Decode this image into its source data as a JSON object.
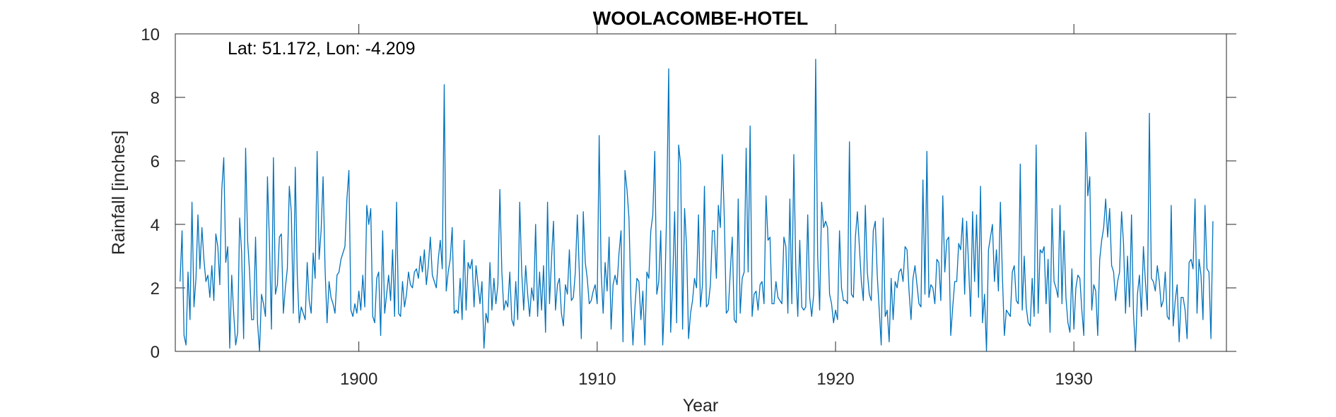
{
  "chart_data": {
    "type": "line",
    "title": "WOOLACOMBE-HOTEL",
    "annotation": "Lat: 51.172, Lon: -4.209",
    "xlabel": "Year",
    "ylabel": "Rainfall [inches]",
    "xlim": [
      1892.3,
      1936.4
    ],
    "ylim": [
      0,
      10
    ],
    "xticks": [
      1900,
      1910,
      1920,
      1930
    ],
    "yticks": [
      0,
      2,
      4,
      6,
      8,
      10
    ],
    "grid": false,
    "line_color": "#0072BD",
    "series": [
      {
        "x_start": 1892.5,
        "x_step": 0.0833333,
        "values": [
          2.2,
          3.8,
          0.5,
          0.2,
          2.5,
          1.0,
          4.7,
          1.4,
          2.3,
          4.3,
          2.6,
          3.9,
          2.9,
          2.2,
          2.4,
          1.7,
          2.7,
          1.6,
          3.7,
          3.3,
          2.1,
          5.1,
          6.1,
          2.8,
          3.3,
          0.1,
          2.4,
          1.2,
          0.2,
          0.6,
          4.2,
          3.1,
          0.4,
          6.4,
          3.5,
          2.5,
          1.0,
          1.0,
          3.6,
          0.9,
          0.0,
          1.8,
          1.5,
          1.1,
          5.5,
          3.4,
          0.7,
          6.1,
          1.8,
          2.1,
          3.6,
          3.7,
          1.2,
          2.0,
          2.6,
          5.2,
          4.4,
          1.2,
          5.8,
          2.4,
          0.9,
          1.4,
          1.2,
          1.0,
          2.8,
          1.6,
          1.2,
          3.1,
          2.3,
          6.3,
          2.9,
          3.8,
          5.5,
          2.6,
          0.9,
          2.2,
          1.7,
          1.5,
          1.2,
          2.4,
          2.5,
          2.9,
          3.1,
          3.3,
          4.8,
          5.7,
          1.3,
          1.1,
          1.5,
          1.2,
          1.9,
          1.3,
          2.4,
          1.4,
          4.6,
          4.0,
          4.5,
          1.1,
          0.9,
          2.3,
          2.5,
          0.5,
          3.8,
          1.2,
          1.8,
          2.4,
          1.6,
          3.2,
          1.1,
          4.7,
          1.2,
          1.1,
          2.2,
          1.4,
          1.8,
          2.5,
          2.1,
          2.0,
          2.5,
          2.6,
          2.3,
          3.0,
          2.5,
          3.2,
          2.1,
          2.7,
          3.6,
          2.4,
          2.2,
          2.0,
          2.9,
          3.5,
          2.6,
          8.4,
          1.9,
          2.5,
          2.9,
          3.9,
          1.2,
          1.3,
          1.2,
          2.3,
          1.0,
          3.5,
          1.3,
          2.8,
          2.6,
          2.9,
          1.4,
          2.7,
          2.1,
          1.5,
          2.2,
          0.1,
          1.2,
          0.9,
          2.8,
          1.3,
          2.3,
          1.5,
          2.1,
          5.1,
          2.5,
          1.3,
          1.6,
          1.4,
          2.5,
          1.0,
          0.8,
          2.2,
          1.0,
          4.7,
          2.5,
          1.3,
          2.7,
          1.8,
          1.1,
          2.0,
          1.6,
          4.0,
          1.1,
          2.5,
          1.3,
          2.7,
          0.6,
          4.7,
          1.5,
          2.9,
          4.1,
          1.3,
          2.1,
          2.3,
          1.2,
          0.8,
          2.1,
          1.8,
          3.2,
          1.6,
          1.7,
          2.5,
          4.3,
          2.5,
          0.4,
          4.4,
          2.8,
          2.3,
          1.5,
          1.6,
          1.9,
          2.1,
          1.5,
          6.8,
          2.5,
          1.2,
          2.8,
          1.9,
          3.6,
          0.7,
          2.1,
          2.4,
          2.1,
          3.1,
          3.8,
          0.3,
          5.7,
          5.1,
          4.2,
          1.6,
          0.2,
          1.4,
          2.3,
          2.2,
          1.0,
          1.9,
          0.2,
          2.5,
          2.3,
          3.8,
          4.3,
          6.3,
          1.8,
          2.2,
          3.8,
          0.2,
          1.7,
          4.5,
          8.9,
          0.6,
          2.2,
          4.4,
          0.9,
          6.5,
          5.9,
          0.7,
          4.5,
          3.3,
          0.4,
          1.2,
          1.6,
          2.3,
          2.0,
          4.3,
          1.4,
          2.1,
          5.2,
          1.4,
          1.5,
          2.1,
          3.8,
          3.8,
          2.3,
          4.6,
          3.9,
          6.2,
          4.2,
          1.2,
          1.3,
          2.5,
          3.6,
          1.0,
          0.9,
          4.8,
          1.2,
          2.3,
          2.5,
          6.4,
          2.5,
          7.1,
          1.1,
          1.8,
          1.9,
          1.3,
          2.1,
          2.2,
          1.5,
          4.9,
          3.5,
          3.6,
          1.5,
          1.5,
          2.2,
          1.7,
          1.6,
          1.5,
          3.6,
          3.3,
          1.2,
          4.8,
          1.5,
          6.2,
          2.6,
          1.1,
          3.5,
          1.4,
          1.3,
          1.4,
          4.3,
          1.7,
          1.1,
          1.8,
          9.2,
          3.0,
          1.3,
          4.7,
          3.9,
          4.1,
          3.9,
          1.8,
          1.5,
          0.9,
          1.3,
          1.0,
          3.8,
          2.0,
          1.6,
          1.6,
          1.5,
          6.6,
          1.8,
          1.7,
          3.6,
          4.4,
          3.3,
          2.2,
          1.6,
          4.6,
          2.5,
          1.8,
          1.6,
          3.8,
          4.1,
          2.4,
          1.3,
          0.2,
          4.2,
          1.1,
          1.3,
          0.3,
          2.3,
          1.0,
          2.2,
          2.0,
          2.5,
          2.6,
          2.2,
          3.3,
          3.2,
          1.9,
          1.0,
          2.3,
          2.7,
          2.1,
          1.5,
          1.4,
          5.4,
          1.8,
          6.3,
          1.7,
          2.1,
          2.0,
          1.5,
          2.9,
          2.8,
          1.6,
          4.9,
          2.5,
          3.5,
          3.6,
          0.5,
          1.4,
          2.2,
          2.2,
          3.4,
          3.2,
          4.2,
          1.8,
          4.1,
          2.7,
          1.1,
          4.4,
          2.2,
          4.3,
          1.7,
          5.2,
          0.9,
          1.8,
          0.0,
          3.2,
          3.6,
          4.0,
          2.2,
          3.2,
          1.9,
          4.7,
          2.4,
          0.5,
          1.3,
          1.2,
          1.1,
          2.5,
          2.7,
          1.6,
          1.5,
          5.9,
          1.3,
          3.0,
          1.4,
          0.9,
          0.8,
          2.3,
          1.1,
          6.5,
          1.2,
          3.2,
          3.1,
          3.3,
          1.5,
          2.9,
          0.6,
          4.5,
          2.2,
          2.0,
          1.7,
          4.6,
          1.5,
          3.8,
          1.7,
          0.9,
          0.6,
          2.6,
          0.7,
          2.0,
          2.4,
          2.3,
          1.3,
          0.5,
          6.9,
          4.9,
          5.5,
          1.3,
          2.1,
          1.9,
          0.5,
          2.9,
          3.5,
          3.9,
          4.8,
          3.6,
          4.5,
          2.7,
          2.5,
          1.6,
          2.2,
          2.5,
          4.4,
          3.4,
          1.2,
          3.0,
          1.4,
          4.3,
          1.2,
          0.0,
          1.8,
          2.4,
          1.1,
          3.3,
          2.2,
          1.3,
          7.5,
          2.3,
          2.2,
          1.9,
          2.7,
          2.2,
          1.4,
          1.6,
          2.5,
          1.1,
          1.0,
          4.6,
          0.8,
          1.6,
          2.1,
          0.3,
          1.7,
          1.7,
          1.3,
          0.4,
          2.8,
          2.9,
          2.6,
          4.8,
          1.2,
          2.9,
          2.4,
          1.0,
          4.6,
          2.6,
          2.5,
          0.4,
          4.1
        ]
      }
    ]
  }
}
